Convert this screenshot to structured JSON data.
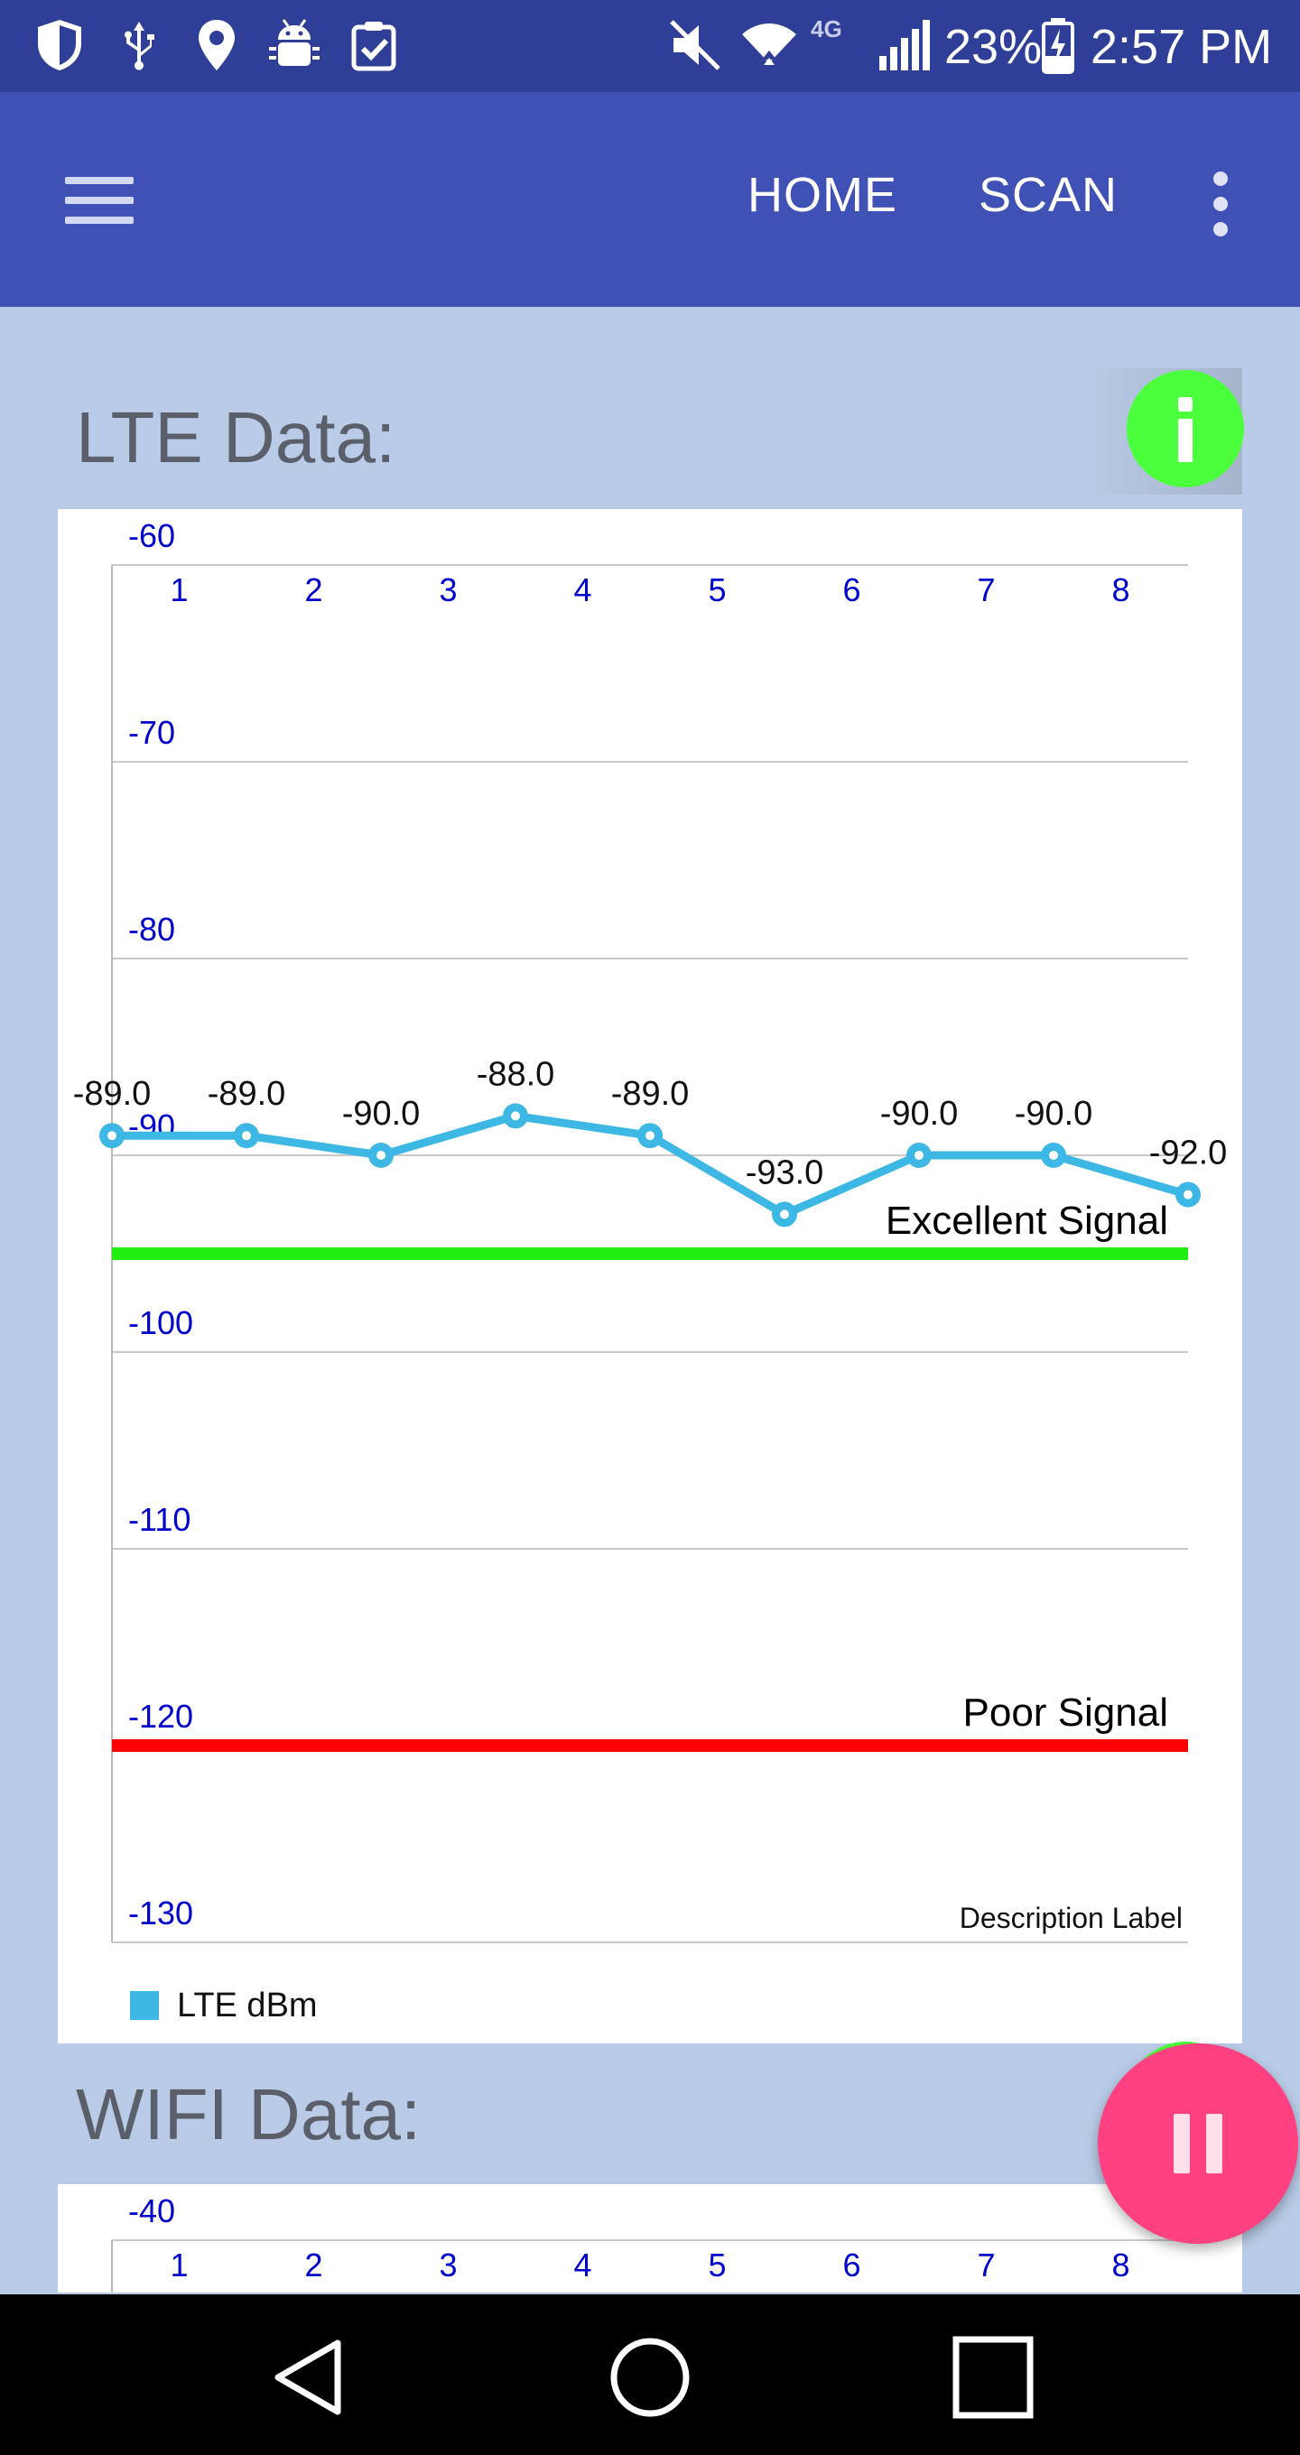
{
  "status_bar": {
    "battery": "23%",
    "time": "2:57 PM",
    "network": "4G",
    "left_icons": [
      "shield-icon",
      "usb-icon",
      "location-icon",
      "android-debug-icon",
      "clipboard-check-icon"
    ],
    "right_icons": [
      "mute-icon",
      "wifi-icon",
      "signal-icon",
      "battery-charging-icon"
    ]
  },
  "app_bar": {
    "menu_icon": "hamburger-icon",
    "home_label": "HOME",
    "scan_label": "SCAN",
    "overflow_icon": "more-vert-icon"
  },
  "lte_section": {
    "title": "LTE Data:",
    "info_icon": "info-icon"
  },
  "wifi_section": {
    "title": "WIFI Data:",
    "info_icon": "info-icon"
  },
  "chart_data": [
    {
      "type": "line",
      "title": "",
      "x": [
        1,
        2,
        3,
        4,
        5,
        6,
        7,
        8,
        9
      ],
      "x_tick_labels": [
        "1",
        "2",
        "3",
        "4",
        "5",
        "6",
        "7",
        "8"
      ],
      "ylim": [
        -130,
        -60
      ],
      "y_ticks": [
        -60,
        -70,
        -80,
        -90,
        -100,
        -110,
        -120,
        -130
      ],
      "grid": true,
      "series": [
        {
          "name": "LTE dBm",
          "values": [
            -89.0,
            -89.0,
            -90.0,
            -88.0,
            -89.0,
            -93.0,
            -90.0,
            -90.0,
            -92.0
          ],
          "data_labels": [
            "-89.0",
            "-89.0",
            "-90.0",
            "-88.0",
            "-89.0",
            "-93.0",
            "-90.0",
            "-90.0",
            "-92.0"
          ],
          "color": "#3db7e4"
        }
      ],
      "limit_lines": [
        {
          "label": "Excellent Signal",
          "value": -95,
          "color": "#22ee11"
        },
        {
          "label": "Poor Signal",
          "value": -120,
          "color": "#ff0000"
        }
      ],
      "description_label": "Description Label",
      "legend": {
        "placement": "bottom-left",
        "entries": [
          "LTE dBm"
        ]
      },
      "axis_color": "#0000cc"
    },
    {
      "type": "line",
      "title": "",
      "x_tick_labels": [
        "1",
        "2",
        "3",
        "4",
        "5",
        "6",
        "7",
        "8"
      ],
      "y_ticks_visible": [
        -40
      ],
      "grid": true,
      "axis_color": "#0000cc"
    }
  ],
  "controls": {
    "pause_icon": "pause-icon"
  },
  "nav_bar": {
    "back_icon": "back-triangle-icon",
    "home_icon": "home-circle-icon",
    "recents_icon": "recents-square-icon"
  }
}
